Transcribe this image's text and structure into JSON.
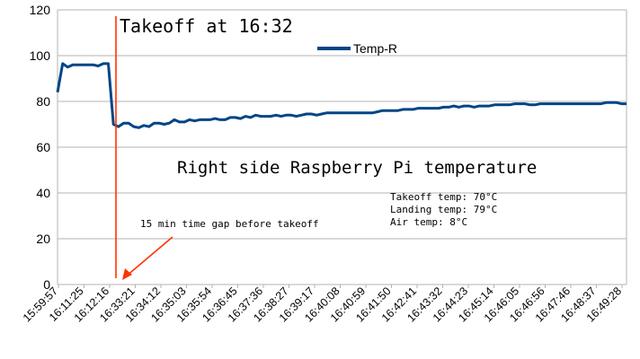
{
  "chart_data": {
    "type": "line",
    "title": "",
    "xlabel": "",
    "ylabel": "",
    "ylim": [
      0,
      120
    ],
    "yticks": [
      0,
      20,
      40,
      60,
      80,
      100,
      120
    ],
    "grid": "horizontal",
    "legend": "top-center",
    "x_tick_labels": [
      "15:59:57",
      "16:11:25",
      "16:12:16",
      "16:33:21",
      "16:34:12",
      "16:35:03",
      "16:35:54",
      "16:36:45",
      "16:37:36",
      "16:38:27",
      "16:39:17",
      "16:40:08",
      "16:40:59",
      "16:41:50",
      "16:42:41",
      "16:43:32",
      "16:44:23",
      "16:45:14",
      "16:46:05",
      "16:46:56",
      "16:47:46",
      "16:48:37",
      "16:49:28"
    ],
    "series": [
      {
        "name": "Temp-R",
        "color": "#004586",
        "values": [
          84,
          96.5,
          95,
          96,
          96,
          96,
          96,
          96,
          95.5,
          96.5,
          96.5,
          70,
          69,
          70.5,
          70.5,
          69,
          68.5,
          69.5,
          69,
          70.5,
          70.5,
          70,
          70.5,
          72,
          71,
          71,
          72,
          71.5,
          72,
          72,
          72,
          72.5,
          72,
          72,
          73,
          73,
          72.5,
          73.5,
          73,
          74,
          73.5,
          73.5,
          73.5,
          74,
          73.5,
          74,
          74,
          73.5,
          74,
          74.5,
          74.5,
          74,
          74.5,
          75,
          75,
          75,
          75,
          75,
          75,
          75,
          75,
          75,
          75,
          75.5,
          76,
          76,
          76,
          76,
          76.5,
          76.5,
          76.5,
          77,
          77,
          77,
          77,
          77,
          77.5,
          77.5,
          78,
          77.5,
          78,
          78,
          77.5,
          78,
          78,
          78,
          78.5,
          78.5,
          78.5,
          78.5,
          79,
          79,
          79,
          78.5,
          78.5,
          79,
          79,
          79,
          79,
          79,
          79,
          79,
          79,
          79,
          79,
          79,
          79,
          79,
          79.5,
          79.5,
          79.5,
          79,
          79
        ]
      }
    ],
    "annotations": {
      "takeoff_title": "Takeoff at 16:32",
      "subtitle": "Right side Raspberry Pi temperature",
      "gap_note": "15 min time gap before takeoff",
      "takeoff_temp": "Takeoff temp: 70°C",
      "landing_temp": "Landing temp: 79°C",
      "air_temp": "Air temp: 8°C",
      "takeoff_index": 10.6,
      "marker_color": "#ff3300"
    }
  }
}
